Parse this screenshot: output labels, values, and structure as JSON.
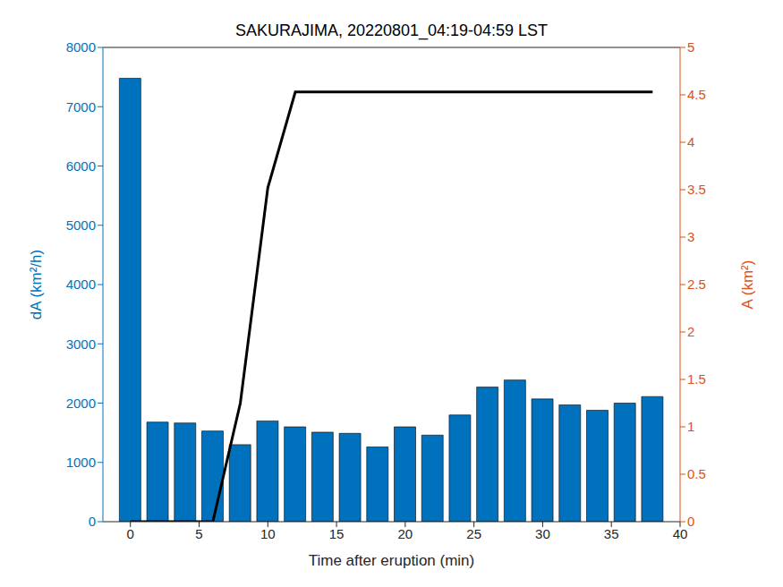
{
  "chart_data": {
    "type": "bar",
    "title": "SAKURAJIMA, 20220801_04:19-04:59 LST",
    "x_label": "Time after eruption (min)",
    "y_label": "dA (km²/h)",
    "y2_label": "A (km²)",
    "x": [
      0,
      2,
      4,
      6,
      8,
      10,
      12,
      14,
      16,
      18,
      20,
      22,
      24,
      26,
      28,
      30,
      32,
      34,
      36,
      38
    ],
    "series": [
      {
        "type": "bar",
        "color": "#0072bd",
        "values": [
          7480,
          1680,
          1665,
          1530,
          1300,
          1700,
          1600,
          1510,
          1490,
          1260,
          1600,
          1460,
          1800,
          2270,
          2390,
          2070,
          1970,
          1880,
          2000,
          2110
        ]
      },
      {
        "type": "line",
        "color": "#000000",
        "axis": "y2",
        "values": [
          0,
          0,
          0,
          0,
          1.25,
          3.52,
          4.53,
          4.53,
          4.53,
          4.53,
          4.53,
          4.53,
          4.53,
          4.53,
          4.53,
          4.53,
          4.53,
          4.53,
          4.53,
          4.53
        ]
      }
    ],
    "xlim": [
      -2,
      40
    ],
    "xticks": [
      0,
      5,
      10,
      15,
      20,
      25,
      30,
      35,
      40
    ],
    "ylim": [
      0,
      8000
    ],
    "yticks": [
      0,
      1000,
      2000,
      3000,
      4000,
      5000,
      6000,
      7000,
      8000
    ],
    "y2lim": [
      0,
      5
    ],
    "y2ticks": [
      0,
      0.5,
      1,
      1.5,
      2,
      2.5,
      3,
      3.5,
      4,
      4.5,
      5
    ],
    "grid": false
  }
}
